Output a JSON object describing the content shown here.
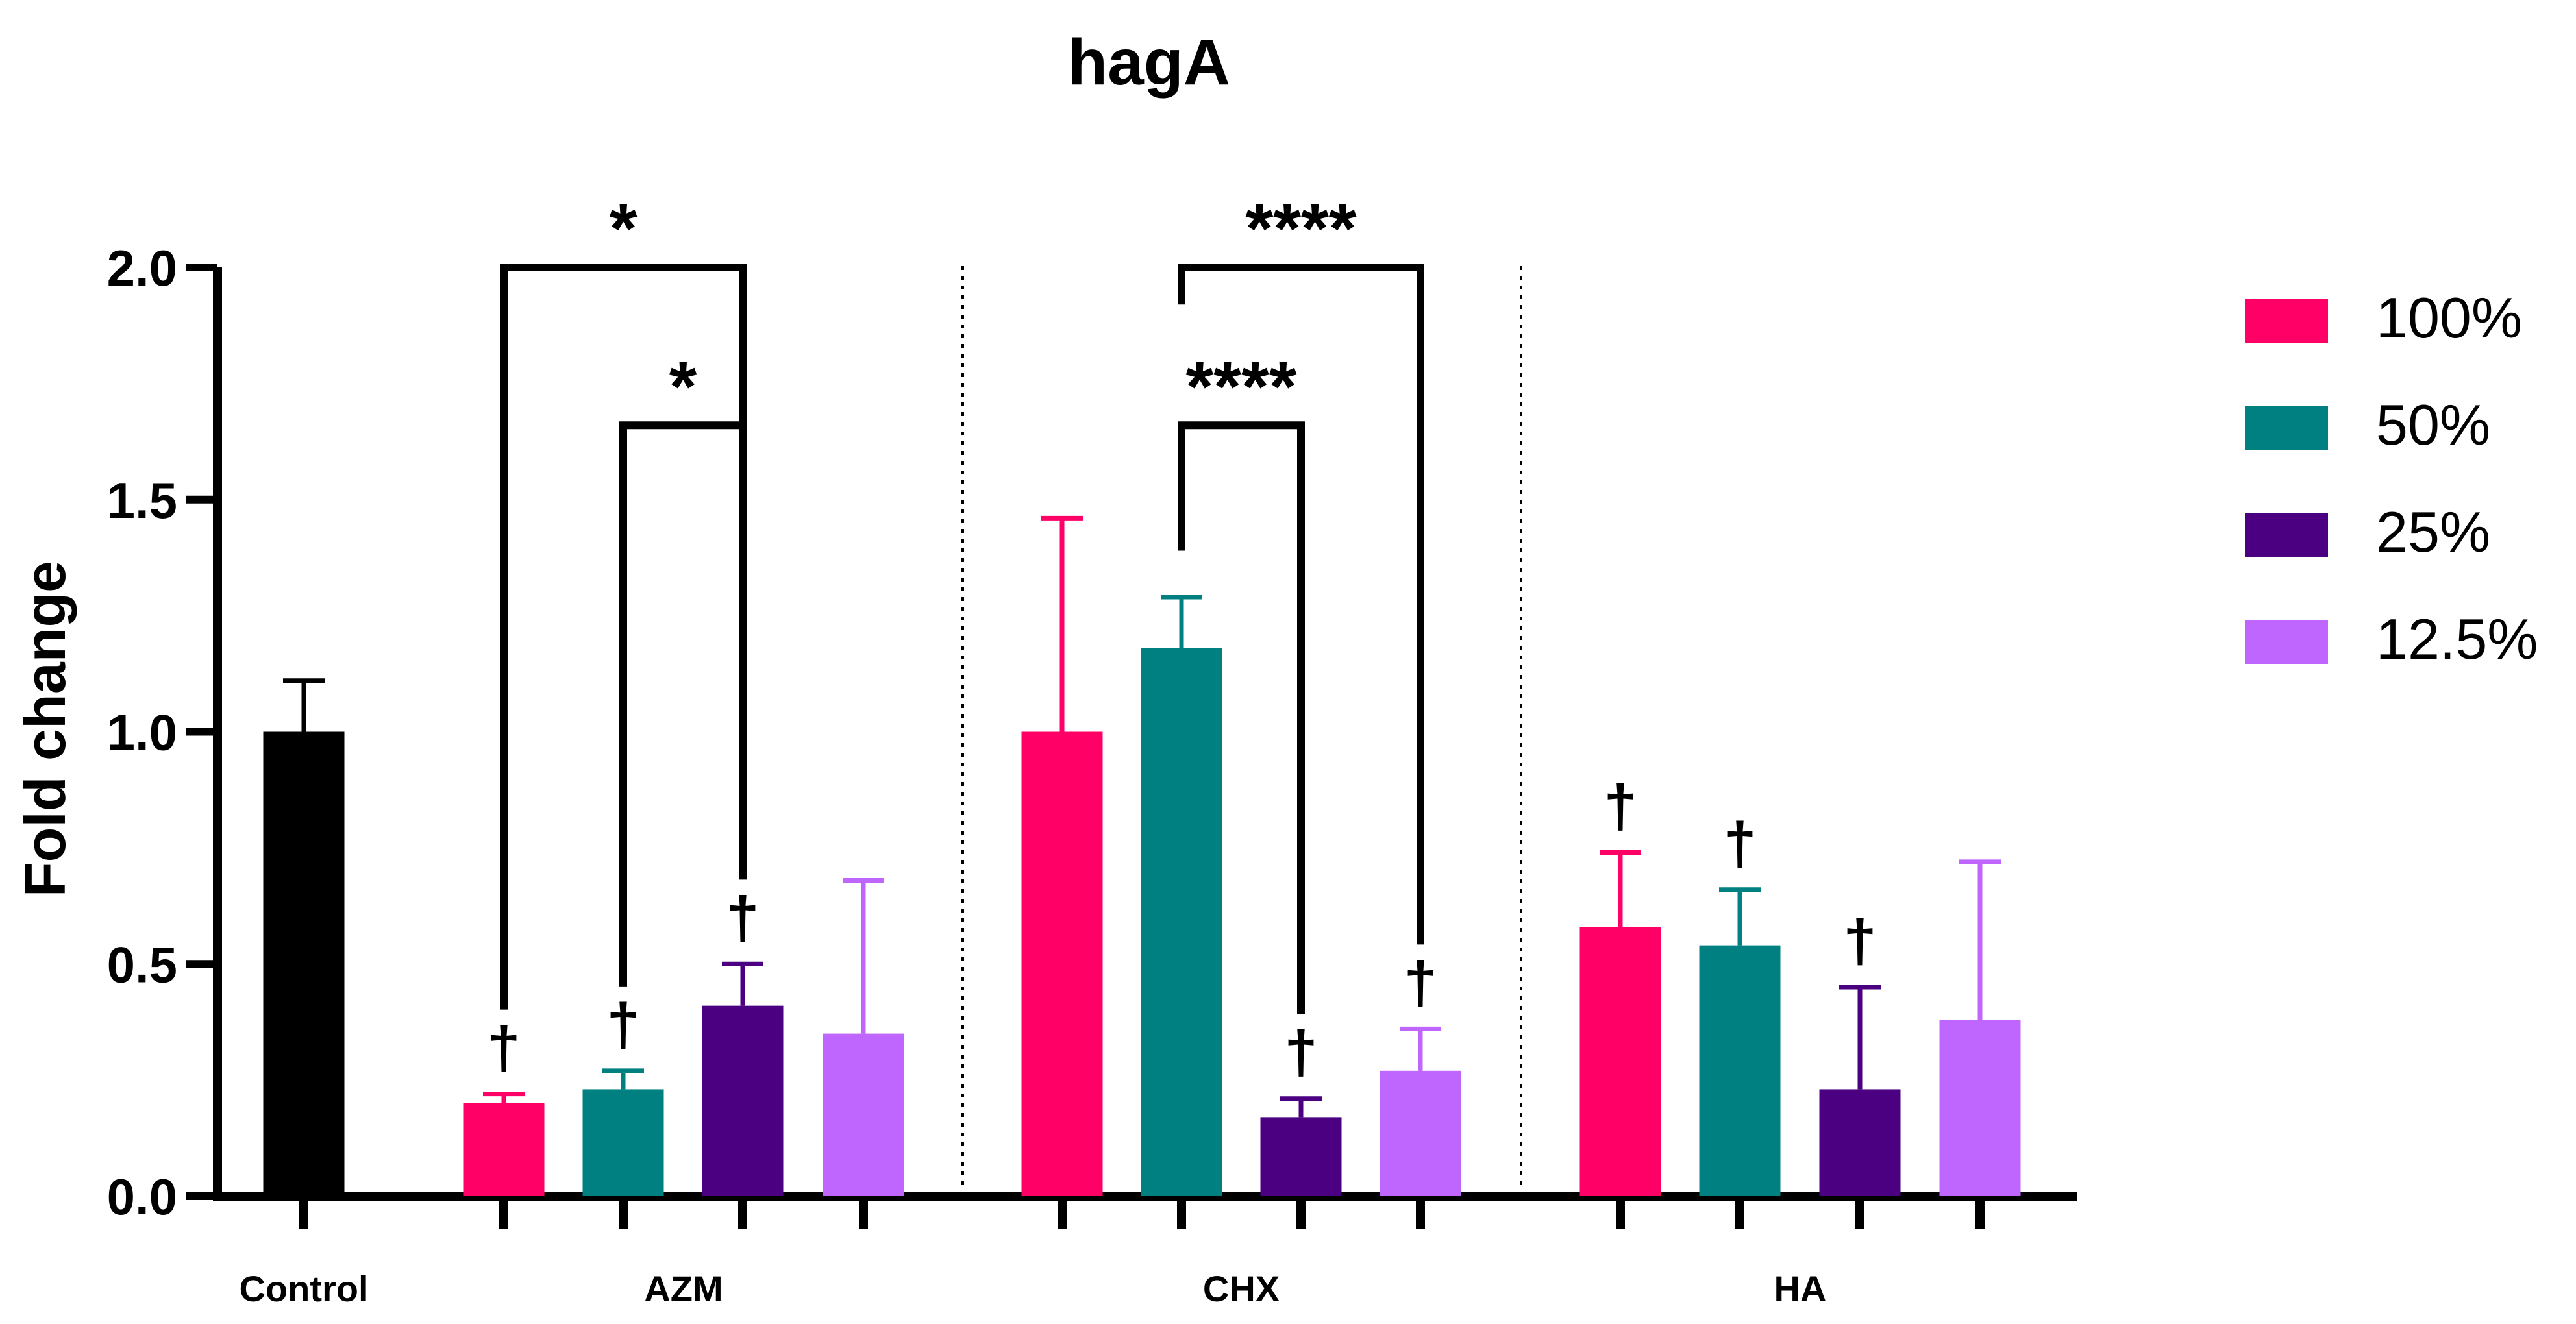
{
  "chart_data": {
    "type": "bar",
    "title": "hagA",
    "ylabel": "Fold change",
    "xlabel": "",
    "ylim": [
      0,
      2.0
    ],
    "yticks": [
      "0.0",
      "0.5",
      "1.0",
      "1.5",
      "2.0"
    ],
    "groups": [
      "Control",
      "AZM",
      "CHX",
      "HA"
    ],
    "control": {
      "value": 1.0,
      "error": 0.11,
      "color": "#000000"
    },
    "series": [
      {
        "name": "100%",
        "color": "#FF0066",
        "values": [
          0.2,
          1.0,
          0.58
        ],
        "errors": [
          0.02,
          0.46,
          0.16
        ]
      },
      {
        "name": "50%",
        "color": "#008080",
        "values": [
          0.23,
          1.18,
          0.54
        ],
        "errors": [
          0.04,
          0.11,
          0.12
        ]
      },
      {
        "name": "25%",
        "color": "#4B0082",
        "values": [
          0.41,
          0.17,
          0.23
        ],
        "errors": [
          0.09,
          0.04,
          0.22
        ]
      },
      {
        "name": "12.5%",
        "color": "#BF66FF",
        "values": [
          0.35,
          0.27,
          0.38
        ],
        "errors": [
          0.33,
          0.09,
          0.34
        ]
      }
    ],
    "dagger": {
      "symbol": "†",
      "marks": [
        {
          "group": "AZM",
          "series": "100%"
        },
        {
          "group": "AZM",
          "series": "50%"
        },
        {
          "group": "AZM",
          "series": "25%"
        },
        {
          "group": "CHX",
          "series": "25%"
        },
        {
          "group": "CHX",
          "series": "12.5%"
        },
        {
          "group": "HA",
          "series": "100%"
        },
        {
          "group": "HA",
          "series": "50%"
        },
        {
          "group": "HA",
          "series": "25%"
        }
      ]
    },
    "significance": [
      {
        "group": "AZM",
        "from": "100%",
        "to": "25%",
        "label": "*",
        "level": 2.0
      },
      {
        "group": "AZM",
        "from": "50%",
        "to": "25%",
        "label": "*",
        "level": 1.66
      },
      {
        "group": "CHX",
        "from": "50%",
        "to": "12.5%",
        "label": "****",
        "level": 2.0
      },
      {
        "group": "CHX",
        "from": "50%",
        "to": "25%",
        "label": "****",
        "level": 1.66
      }
    ],
    "legend": {
      "position": "right"
    }
  }
}
